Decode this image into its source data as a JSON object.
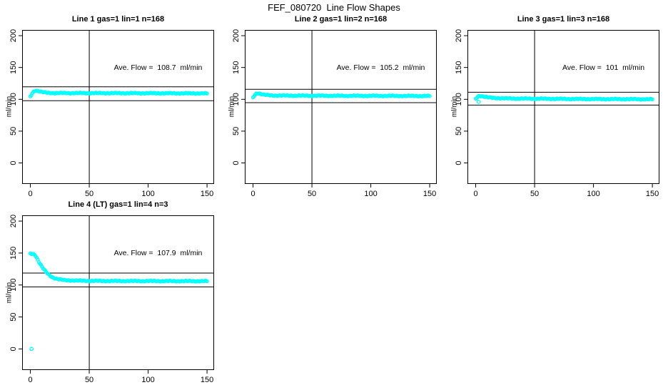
{
  "title": "FEF_080720  Line Flow Shapes",
  "colors": {
    "points": "#00FFFF",
    "axis": "#000000",
    "background": "#FFFFFF"
  },
  "axis": {
    "ylabel": "ml/min",
    "x_ticks": [
      0,
      50,
      100,
      150
    ],
    "y_ticks": [
      0,
      50,
      100,
      150,
      200
    ],
    "xlim": [
      -7,
      156
    ],
    "ylim": [
      -33,
      209
    ],
    "vline_x": 50,
    "grid": false,
    "legend": "none"
  },
  "chart_data": [
    {
      "type": "scatter",
      "title": "Line 1 gas=1 lin=1 n=168",
      "ylabel": "ml/min",
      "annotation": "Ave. Flow =  108.7  ml/min",
      "ave_flow_ml_min": 108.7,
      "n": 168,
      "point_count": 168,
      "hlines": [
        119.6,
        97.8
      ],
      "series_keypoints": [
        [
          0,
          104.5
        ],
        [
          1,
          107.5
        ],
        [
          2,
          110.5
        ],
        [
          3,
          112.7
        ],
        [
          4,
          113.6
        ],
        [
          5,
          113.8
        ],
        [
          6,
          113.4
        ],
        [
          8,
          112.4
        ],
        [
          10,
          111.4
        ],
        [
          13,
          110.6
        ],
        [
          16,
          110.1
        ],
        [
          20,
          109.9
        ],
        [
          40,
          109.8
        ],
        [
          80,
          109.7
        ],
        [
          120,
          109.5
        ],
        [
          150,
          109.3
        ]
      ],
      "outliers": []
    },
    {
      "type": "scatter",
      "title": "Line 2 gas=1 lin=2 n=168",
      "ylabel": "ml/min",
      "annotation": "Ave. Flow =  105.2  ml/min",
      "ave_flow_ml_min": 105.2,
      "n": 168,
      "point_count": 168,
      "hlines": [
        115.7,
        94.7
      ],
      "series_keypoints": [
        [
          0,
          103
        ],
        [
          1,
          105.5
        ],
        [
          2,
          107.8
        ],
        [
          3,
          109.3
        ],
        [
          4,
          109.7
        ],
        [
          5,
          109.4
        ],
        [
          6,
          108.8
        ],
        [
          8,
          107.8
        ],
        [
          10,
          107
        ],
        [
          13,
          106.4
        ],
        [
          16,
          106.1
        ],
        [
          20,
          105.9
        ],
        [
          40,
          105.7
        ],
        [
          80,
          105.5
        ],
        [
          120,
          105.4
        ],
        [
          150,
          105.2
        ]
      ],
      "outliers": []
    },
    {
      "type": "scatter",
      "title": "Line 3 gas=1 lin=3 n=168",
      "ylabel": "ml/min",
      "annotation": "Ave. Flow =  101  ml/min",
      "ave_flow_ml_min": 101,
      "n": 168,
      "point_count": 168,
      "hlines": [
        111.1,
        90.9
      ],
      "series_keypoints": [
        [
          0,
          101
        ],
        [
          1,
          103
        ],
        [
          2,
          104.5
        ],
        [
          3,
          105.3
        ],
        [
          4,
          105.5
        ],
        [
          5,
          105.1
        ],
        [
          6,
          104.6
        ],
        [
          8,
          103.8
        ],
        [
          10,
          103.2
        ],
        [
          13,
          102.6
        ],
        [
          16,
          102.2
        ],
        [
          20,
          101.8
        ],
        [
          25,
          101.5
        ],
        [
          35,
          101.2
        ],
        [
          50,
          101
        ],
        [
          80,
          100.6
        ],
        [
          120,
          100.3
        ],
        [
          150,
          100.1
        ]
      ],
      "outliers": [
        [
          2.5,
          96
        ]
      ]
    },
    {
      "type": "scatter",
      "title": "Line 4 (LT) gas=1 lin=4 n=3",
      "ylabel": "ml/min",
      "annotation": "Ave. Flow =  107.9  ml/min",
      "ave_flow_ml_min": 107.9,
      "n": 3,
      "point_count": 168,
      "hlines": [
        118.7,
        97.1
      ],
      "series_keypoints": [
        [
          0,
          149.5
        ],
        [
          1,
          149
        ],
        [
          2,
          148.7
        ],
        [
          3,
          148.3
        ],
        [
          4,
          147.5
        ],
        [
          5,
          144
        ],
        [
          6,
          140.5
        ],
        [
          7,
          137
        ],
        [
          8,
          133.8
        ],
        [
          9,
          130.8
        ],
        [
          10,
          128
        ],
        [
          11,
          125.5
        ],
        [
          12,
          123.2
        ],
        [
          13,
          121
        ],
        [
          14,
          119
        ],
        [
          15,
          117.3
        ],
        [
          16,
          115.7
        ],
        [
          17,
          114.3
        ],
        [
          18,
          113
        ],
        [
          19,
          111.9
        ],
        [
          20,
          111
        ],
        [
          22,
          109.8
        ],
        [
          24,
          108.9
        ],
        [
          26,
          108.3
        ],
        [
          28,
          107.9
        ],
        [
          30,
          107.6
        ],
        [
          35,
          107.1
        ],
        [
          40,
          106.8
        ],
        [
          50,
          106.5
        ],
        [
          70,
          106.3
        ],
        [
          100,
          106.2
        ],
        [
          150,
          106
        ]
      ],
      "outliers": [
        [
          1,
          0
        ]
      ]
    }
  ]
}
